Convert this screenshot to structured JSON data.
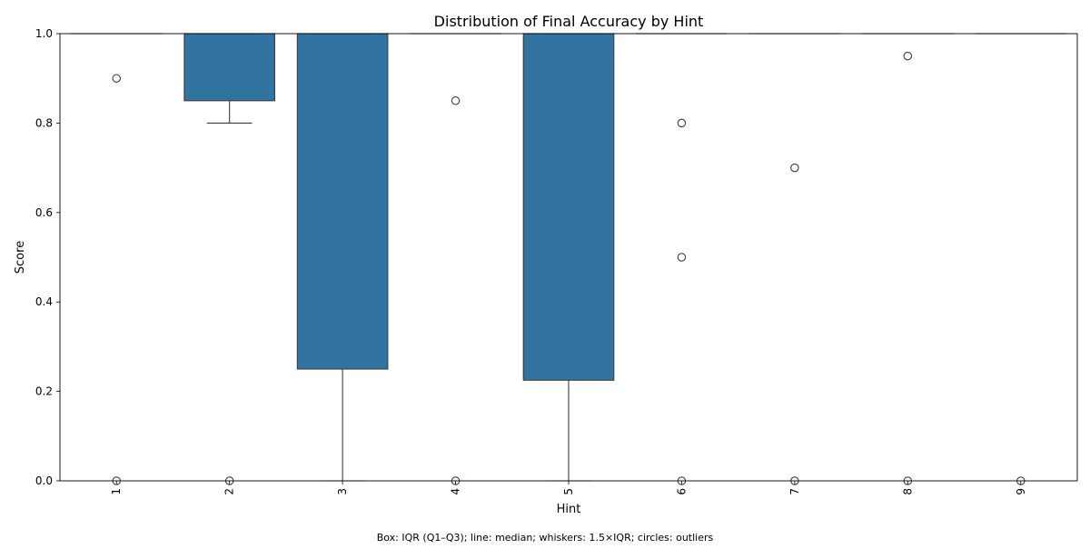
{
  "chart_data": {
    "type": "boxplot",
    "title": "Distribution of Final Accuracy by Hint",
    "xlabel": "Hint",
    "ylabel": "Score",
    "caption": "Box: IQR (Q1–Q3); line: median; whiskers: 1.5×IQR; circles: outliers",
    "ylim": [
      0,
      1
    ],
    "yticks": [
      "0.0",
      "0.2",
      "0.4",
      "0.6",
      "0.8",
      "1.0"
    ],
    "categories": [
      "1",
      "2",
      "3",
      "4",
      "5",
      "6",
      "7",
      "8",
      "9"
    ],
    "box_color": "#3274a1",
    "boxes": [
      {
        "hint": "1",
        "q1": 1.0,
        "median": 1.0,
        "q3": 1.0,
        "whisker_low": 1.0,
        "whisker_high": 1.0,
        "outliers": [
          0.9,
          0.0
        ]
      },
      {
        "hint": "2",
        "q1": 0.85,
        "median": 1.0,
        "q3": 1.0,
        "whisker_low": 0.8,
        "whisker_high": 1.0,
        "outliers": [
          0.0
        ]
      },
      {
        "hint": "3",
        "q1": 0.25,
        "median": 1.0,
        "q3": 1.0,
        "whisker_low": 0.0,
        "whisker_high": 1.0,
        "outliers": []
      },
      {
        "hint": "4",
        "q1": 1.0,
        "median": 1.0,
        "q3": 1.0,
        "whisker_low": 1.0,
        "whisker_high": 1.0,
        "outliers": [
          0.85,
          0.0
        ]
      },
      {
        "hint": "5",
        "q1": 0.225,
        "median": 1.0,
        "q3": 1.0,
        "whisker_low": 0.0,
        "whisker_high": 1.0,
        "outliers": []
      },
      {
        "hint": "6",
        "q1": 1.0,
        "median": 1.0,
        "q3": 1.0,
        "whisker_low": 1.0,
        "whisker_high": 1.0,
        "outliers": [
          0.8,
          0.5,
          0.0
        ]
      },
      {
        "hint": "7",
        "q1": 1.0,
        "median": 1.0,
        "q3": 1.0,
        "whisker_low": 1.0,
        "whisker_high": 1.0,
        "outliers": [
          0.7,
          0.0
        ]
      },
      {
        "hint": "8",
        "q1": 1.0,
        "median": 1.0,
        "q3": 1.0,
        "whisker_low": 1.0,
        "whisker_high": 1.0,
        "outliers": [
          0.95,
          0.0
        ]
      },
      {
        "hint": "9",
        "q1": 1.0,
        "median": 1.0,
        "q3": 1.0,
        "whisker_low": 1.0,
        "whisker_high": 1.0,
        "outliers": [
          0.0
        ]
      }
    ]
  }
}
